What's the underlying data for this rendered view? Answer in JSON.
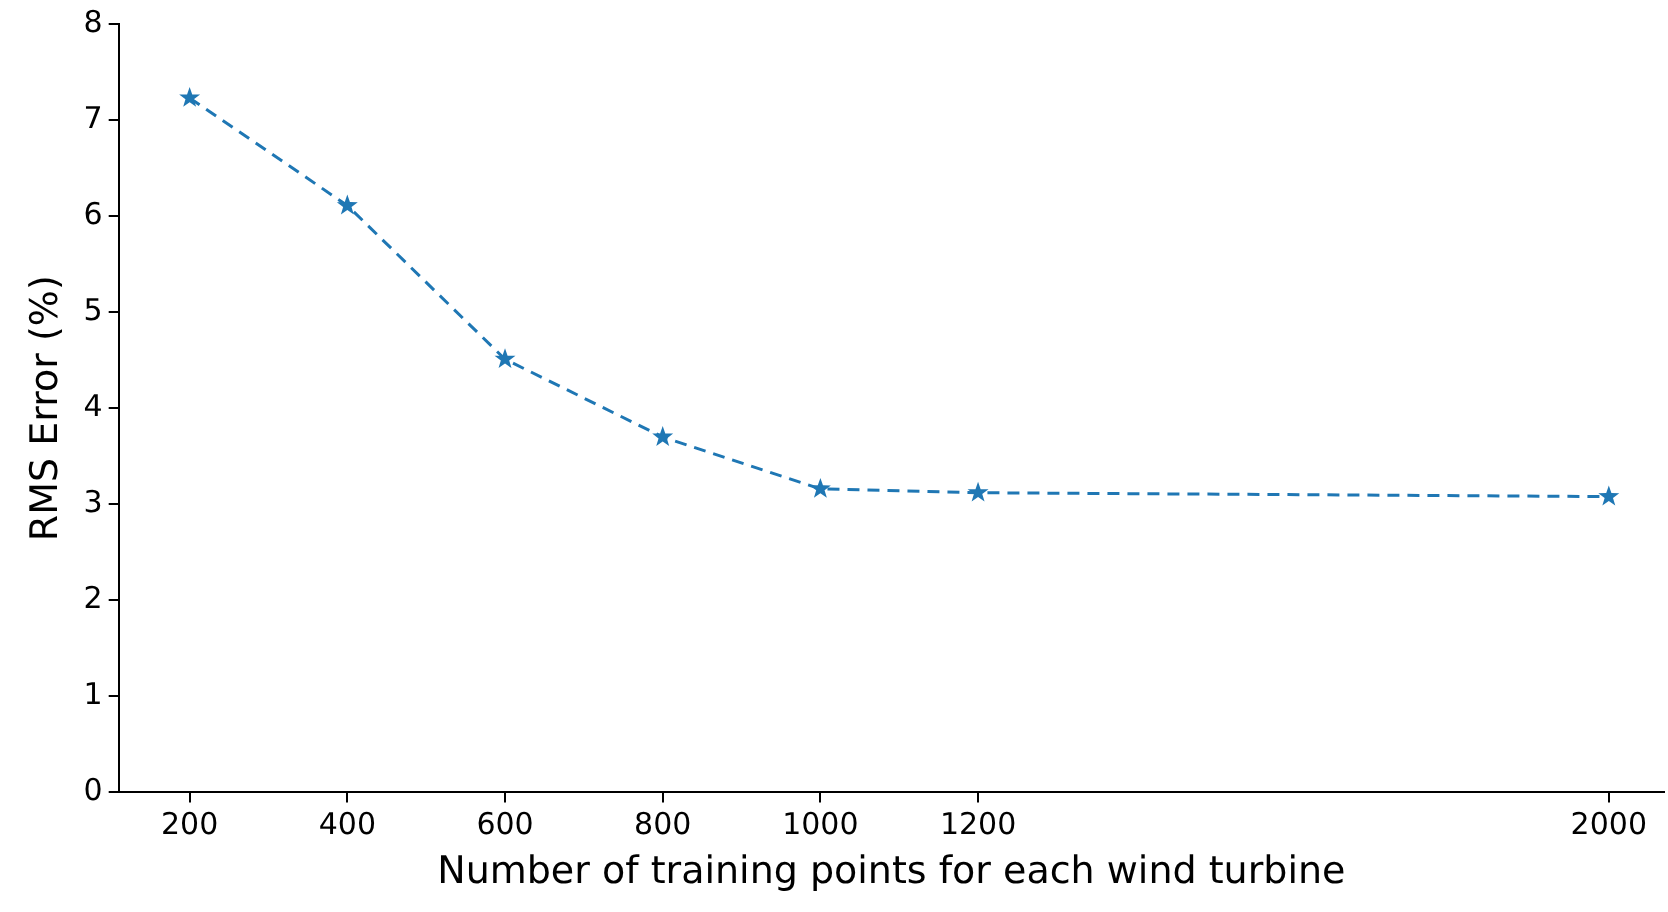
{
  "chart_data": {
    "type": "line",
    "xlabel": "Number of training points for each wind turbine",
    "ylabel": "RMS Error (%)",
    "x": [
      200,
      400,
      600,
      800,
      1000,
      1200,
      2000
    ],
    "series": [
      {
        "color": "#1f77b4",
        "values": [
          7.23,
          6.11,
          4.51,
          3.7,
          3.16,
          3.12,
          3.08
        ]
      }
    ],
    "xlim": [
      110,
      2070
    ],
    "xticks": [
      200,
      400,
      600,
      800,
      1000,
      1200,
      2000
    ],
    "ylim": [
      0,
      8
    ],
    "yticks": [
      0,
      1,
      2,
      3,
      4,
      5,
      6,
      7,
      8
    ],
    "grid": false,
    "legend": false,
    "marker": "star",
    "line_style": "dashed"
  }
}
